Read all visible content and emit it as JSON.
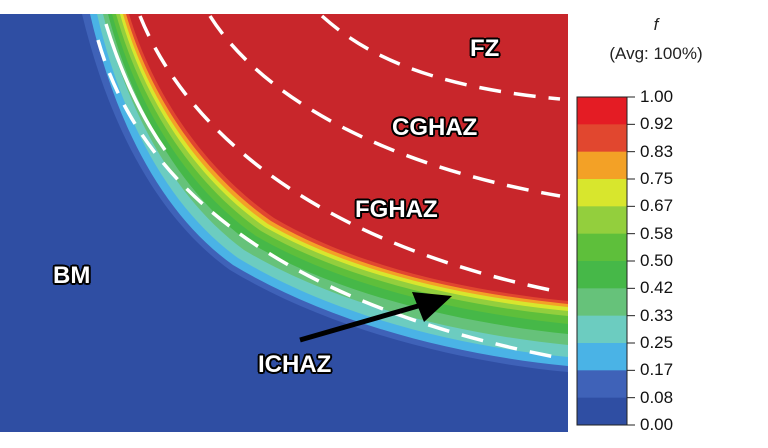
{
  "legend": {
    "variable": "f",
    "avg": "(Avg: 100%)",
    "ticks": [
      "1.00",
      "0.92",
      "0.83",
      "0.75",
      "0.67",
      "0.58",
      "0.50",
      "0.42",
      "0.33",
      "0.25",
      "0.17",
      "0.08",
      "0.00"
    ],
    "colors": [
      "#e41c24",
      "#e1472f",
      "#f3a126",
      "#d8e62d",
      "#93cf3d",
      "#5ebf3b",
      "#46b848",
      "#66c27a",
      "#6cccc0",
      "#4ab3e6",
      "#3f62b8",
      "#2f4ea3"
    ]
  },
  "zones": {
    "fz": "FZ",
    "cghaz": "CGHAZ",
    "fghaz": "FGHAZ",
    "bm": "BM",
    "ichaz": "ICHAZ"
  },
  "colors": {
    "base_metal": "#2f4ea3",
    "fusion_zone": "#c8262b",
    "boundary_line": "#ffffff",
    "arrow": "#000000"
  }
}
